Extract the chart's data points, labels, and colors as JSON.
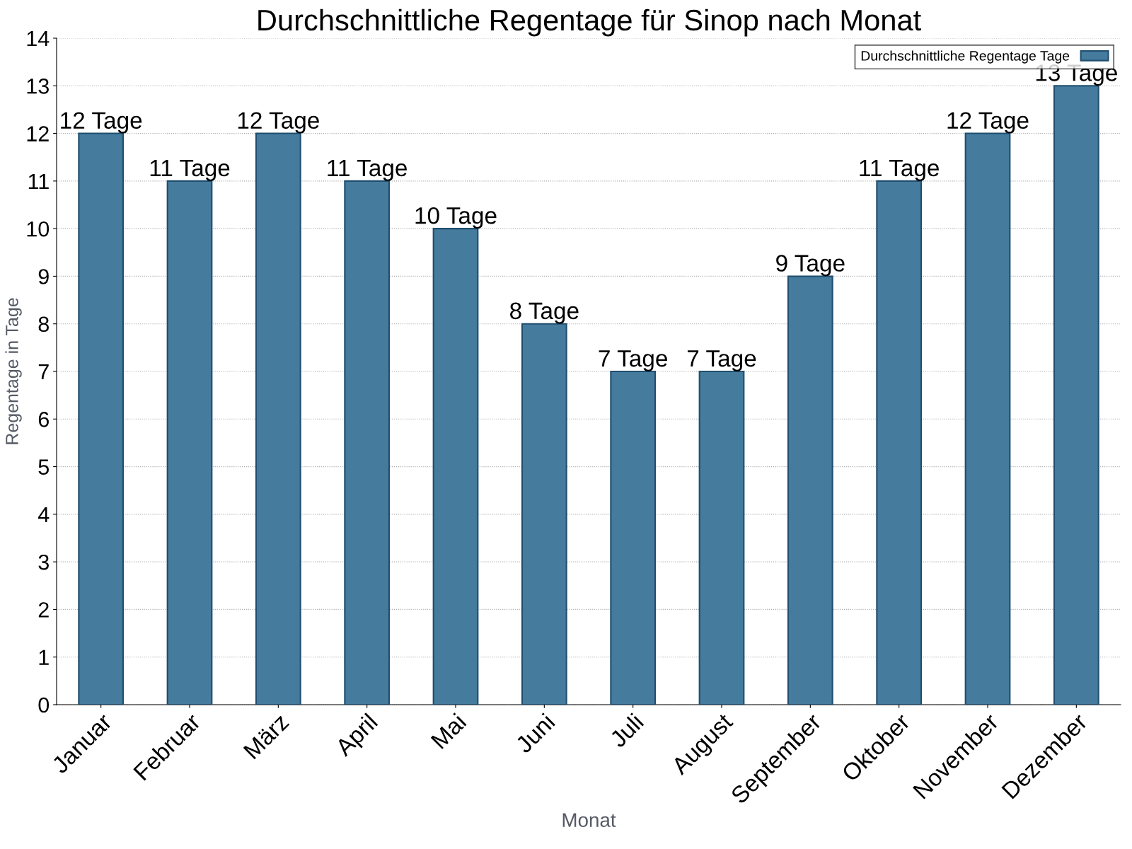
{
  "chart_data": {
    "type": "bar",
    "title": "Durchschnittliche Regentage für Sinop nach Monat",
    "xlabel": "Monat",
    "ylabel": "Regentage in Tage",
    "categories": [
      "Januar",
      "Februar",
      "März",
      "April",
      "Mai",
      "Juni",
      "Juli",
      "August",
      "September",
      "Oktober",
      "November",
      "Dezember"
    ],
    "series": [
      {
        "name": "Durchschnittliche Regentage Tage",
        "color": "#457b9d",
        "values": [
          12,
          11,
          12,
          11,
          10,
          8,
          7,
          7,
          9,
          11,
          12,
          13
        ],
        "value_labels": [
          "12 Tage",
          "11 Tage",
          "12 Tage",
          "11 Tage",
          "10 Tage",
          "8 Tage",
          "7 Tage",
          "7 Tage",
          "9 Tage",
          "11 Tage",
          "12 Tage",
          "13 Tage"
        ]
      }
    ],
    "ylim": [
      0,
      14
    ],
    "yticks": [
      0,
      1,
      2,
      3,
      4,
      5,
      6,
      7,
      8,
      9,
      10,
      11,
      12,
      13,
      14
    ],
    "grid": "y",
    "legend": "top right"
  }
}
